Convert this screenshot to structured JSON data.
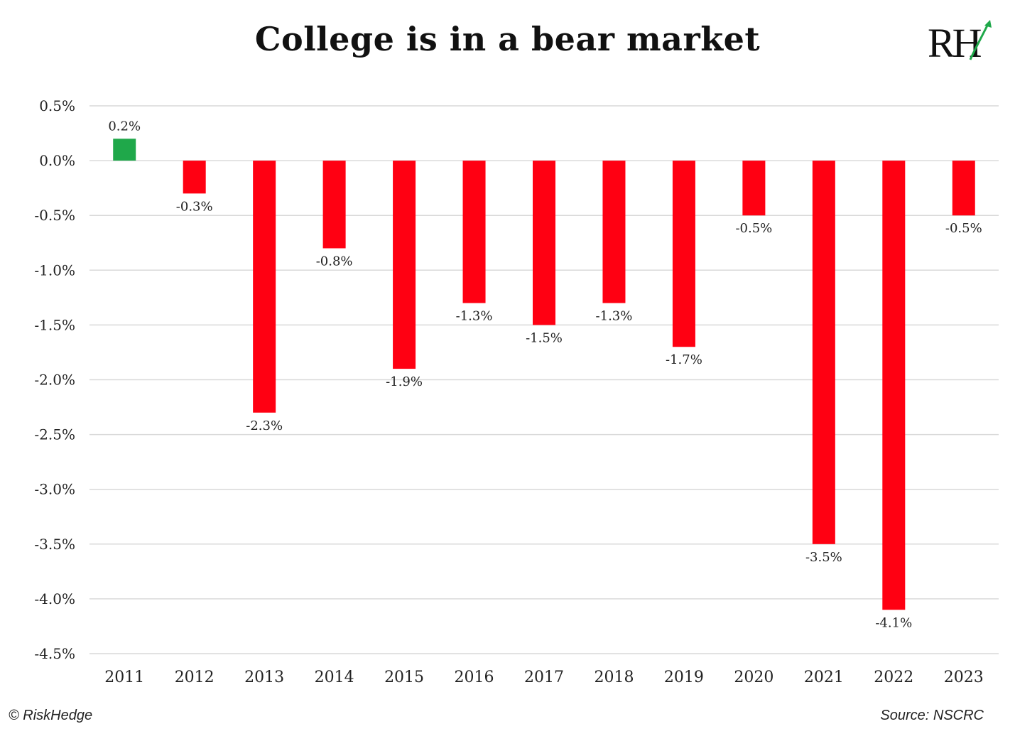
{
  "page": {
    "title": "College is in a bear market",
    "logo_text": "RH",
    "copyright": "© RiskHedge",
    "source": "Source: NSCRC"
  },
  "colors": {
    "positive": "#1fa84a",
    "negative": "#ff0012",
    "grid": "#d9d9d9",
    "text": "#222222"
  },
  "chart_data": {
    "type": "bar",
    "categories": [
      "2011",
      "2012",
      "2013",
      "2014",
      "2015",
      "2016",
      "2017",
      "2018",
      "2019",
      "2020",
      "2021",
      "2022",
      "2023"
    ],
    "values": [
      0.2,
      -0.3,
      -2.3,
      -0.8,
      -1.9,
      -1.3,
      -1.5,
      -1.3,
      -1.7,
      -0.5,
      -3.5,
      -4.1,
      -0.5
    ],
    "data_labels": [
      "0.2%",
      "-0.3%",
      "-2.3%",
      "-0.8%",
      "-1.9%",
      "-1.3%",
      "-1.5%",
      "-1.3%",
      "-1.7%",
      "-0.5%",
      "-3.5%",
      "-4.1%",
      "-0.5%"
    ],
    "y_ticks": [
      0.5,
      0.0,
      -0.5,
      -1.0,
      -1.5,
      -2.0,
      -2.5,
      -3.0,
      -3.5,
      -4.0,
      -4.5
    ],
    "y_tick_labels": [
      "0.5%",
      "0.0%",
      "-0.5%",
      "-1.0%",
      "-1.5%",
      "-2.0%",
      "-2.5%",
      "-3.0%",
      "-3.5%",
      "-4.0%",
      "-4.5%"
    ],
    "ylim": [
      -4.5,
      0.5
    ],
    "grid": true,
    "title": "College is in a bear market",
    "xlabel": "",
    "ylabel": ""
  }
}
